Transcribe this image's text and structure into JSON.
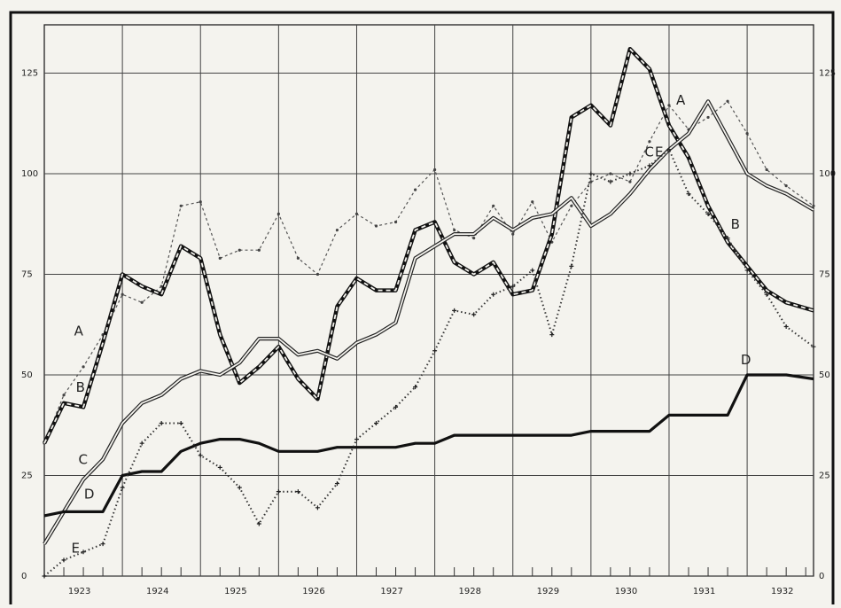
{
  "chart_data": {
    "type": "line",
    "title": "",
    "xlabel": "",
    "ylabel": "",
    "x_tick_labels": [
      "1923",
      "1924",
      "1925",
      "1926",
      "1927",
      "1928",
      "1929",
      "1930",
      "1931",
      "1932"
    ],
    "y_tick_labels": [
      "0",
      "25",
      "50",
      "75",
      "100",
      "125"
    ],
    "ylim": [
      0,
      137
    ],
    "xlim": [
      1923.0,
      1932.85
    ],
    "grid": true,
    "series": [
      {
        "name": "A",
        "style": "thin dashed with dots",
        "x": [
          1923.0,
          1923.25,
          1923.5,
          1923.75,
          1924.0,
          1924.25,
          1924.5,
          1924.75,
          1925.0,
          1925.25,
          1925.5,
          1925.75,
          1926.0,
          1926.25,
          1926.5,
          1926.75,
          1927.0,
          1927.25,
          1927.5,
          1927.75,
          1928.0,
          1928.25,
          1928.5,
          1928.75,
          1929.0,
          1929.25,
          1929.5,
          1929.75,
          1930.0,
          1930.25,
          1930.5,
          1930.75,
          1931.0,
          1931.25,
          1931.5,
          1931.75,
          1932.0,
          1932.25,
          1932.5,
          1932.85
        ],
        "y": [
          33,
          45,
          52,
          60,
          70,
          68,
          72,
          92,
          93,
          79,
          81,
          81,
          90,
          79,
          75,
          86,
          90,
          87,
          88,
          96,
          101,
          86,
          84,
          92,
          85,
          93,
          83,
          92,
          98,
          100,
          98,
          108,
          117,
          111,
          114,
          118,
          110,
          101,
          97,
          92
        ]
      },
      {
        "name": "B",
        "style": "heavy dashed",
        "x": [
          1923.0,
          1923.25,
          1923.5,
          1923.75,
          1924.0,
          1924.25,
          1924.5,
          1924.75,
          1925.0,
          1925.25,
          1925.5,
          1925.75,
          1926.0,
          1926.25,
          1926.5,
          1926.75,
          1927.0,
          1927.25,
          1927.5,
          1927.75,
          1928.0,
          1928.25,
          1928.5,
          1928.75,
          1929.0,
          1929.25,
          1929.5,
          1929.75,
          1930.0,
          1930.25,
          1930.5,
          1930.75,
          1931.0,
          1931.25,
          1931.5,
          1931.75,
          1932.0,
          1932.25,
          1932.5,
          1932.85
        ],
        "y": [
          33,
          43,
          42,
          58,
          75,
          72,
          70,
          82,
          79,
          60,
          48,
          52,
          57,
          49,
          44,
          67,
          74,
          71,
          71,
          86,
          88,
          78,
          75,
          78,
          70,
          71,
          85,
          114,
          117,
          112,
          131,
          126,
          112,
          104,
          92,
          83,
          77,
          71,
          68,
          66
        ]
      },
      {
        "name": "C",
        "style": "double line",
        "x": [
          1923.0,
          1923.25,
          1923.5,
          1923.75,
          1924.0,
          1924.25,
          1924.5,
          1924.75,
          1925.0,
          1925.25,
          1925.5,
          1925.75,
          1926.0,
          1926.25,
          1926.5,
          1926.75,
          1927.0,
          1927.25,
          1927.5,
          1927.75,
          1928.0,
          1928.25,
          1928.5,
          1928.75,
          1929.0,
          1929.25,
          1929.5,
          1929.75,
          1930.0,
          1930.25,
          1930.5,
          1930.75,
          1931.0,
          1931.25,
          1931.5,
          1931.75,
          1932.0,
          1932.25,
          1932.5,
          1932.85
        ],
        "y": [
          8,
          16,
          24,
          29,
          38,
          43,
          45,
          49,
          51,
          50,
          53,
          59,
          59,
          55,
          56,
          54,
          58,
          60,
          63,
          79,
          82,
          85,
          85,
          89,
          86,
          89,
          90,
          94,
          87,
          90,
          95,
          101,
          106,
          110,
          118,
          109,
          100,
          97,
          95,
          91
        ]
      },
      {
        "name": "D",
        "style": "heavy solid",
        "x": [
          1923.0,
          1923.25,
          1923.5,
          1923.75,
          1924.0,
          1924.25,
          1924.5,
          1924.75,
          1925.0,
          1925.25,
          1925.5,
          1925.75,
          1926.0,
          1926.25,
          1926.5,
          1926.75,
          1927.0,
          1927.25,
          1927.5,
          1927.75,
          1928.0,
          1928.25,
          1928.5,
          1928.75,
          1929.0,
          1929.25,
          1929.5,
          1929.75,
          1930.0,
          1930.25,
          1930.5,
          1930.75,
          1931.0,
          1931.25,
          1931.5,
          1931.75,
          1932.0,
          1932.25,
          1932.5,
          1932.85
        ],
        "y": [
          15,
          16,
          16,
          16,
          25,
          26,
          26,
          31,
          33,
          34,
          34,
          33,
          31,
          31,
          31,
          32,
          32,
          32,
          32,
          33,
          33,
          35,
          35,
          35,
          35,
          35,
          35,
          35,
          36,
          36,
          36,
          36,
          40,
          40,
          40,
          40,
          50,
          50,
          50,
          49
        ]
      },
      {
        "name": "E",
        "style": "dotted with crosses",
        "x": [
          1923.0,
          1923.25,
          1923.5,
          1923.75,
          1924.0,
          1924.25,
          1924.5,
          1924.75,
          1925.0,
          1925.25,
          1925.5,
          1925.75,
          1926.0,
          1926.25,
          1926.5,
          1926.75,
          1927.0,
          1927.25,
          1927.5,
          1927.75,
          1928.0,
          1928.25,
          1928.5,
          1928.75,
          1929.0,
          1929.25,
          1929.5,
          1929.75,
          1930.0,
          1930.25,
          1930.5,
          1930.75,
          1931.0,
          1931.25,
          1931.5,
          1931.75,
          1932.0,
          1932.25,
          1932.5,
          1932.85
        ],
        "y": [
          0,
          4,
          6,
          8,
          22,
          33,
          38,
          38,
          30,
          27,
          22,
          13,
          21,
          21,
          17,
          23,
          34,
          38,
          42,
          47,
          56,
          66,
          65,
          70,
          72,
          76,
          60,
          77,
          100,
          98,
          100,
          102,
          106,
          95,
          90,
          84,
          76,
          70,
          62,
          57
        ]
      }
    ],
    "series_label_glyphs": [
      "A",
      "B",
      "C",
      "D",
      "E"
    ]
  }
}
